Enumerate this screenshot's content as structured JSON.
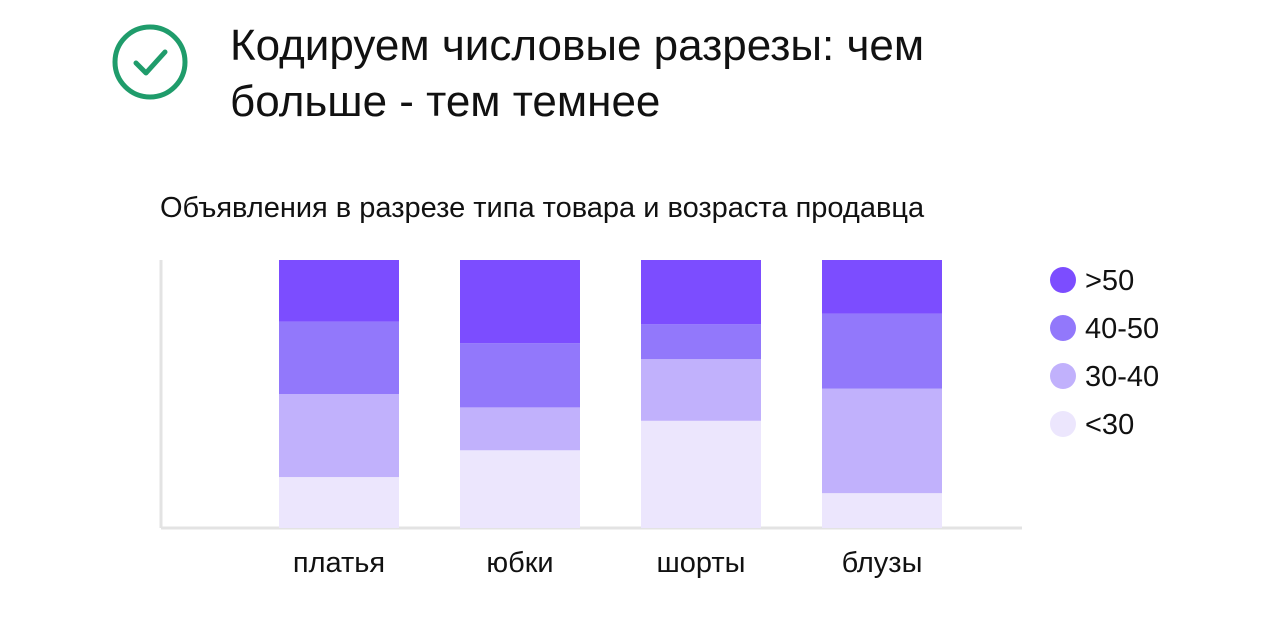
{
  "header": {
    "title_line1": "Кодируем числовые разрезы: чем",
    "title_line2": "больше - тем темнее",
    "icon": "check-circle-icon",
    "icon_color": "#1f9c6b"
  },
  "chart_data": {
    "type": "bar",
    "stacked": true,
    "normalized": true,
    "title": "Объявления в разрезе типа товара и возраста продавца",
    "categories": [
      "платья",
      "юбки",
      "шорты",
      "блузы"
    ],
    "series": [
      {
        "name": "<30",
        "color": "#ece6fd",
        "values": [
          19,
          29,
          40,
          13
        ]
      },
      {
        "name": "30-40",
        "color": "#c1b1fc",
        "values": [
          31,
          16,
          23,
          39
        ]
      },
      {
        "name": "40-50",
        "color": "#9278fb",
        "values": [
          27,
          24,
          13,
          28
        ]
      },
      {
        "name": ">50",
        "color": "#7c4dff",
        "values": [
          23,
          31,
          24,
          20
        ]
      }
    ],
    "legend_order": [
      ">50",
      "40-50",
      "30-40",
      "<30"
    ],
    "legend_position": "right",
    "ylim": [
      0,
      100
    ],
    "grid": false
  }
}
